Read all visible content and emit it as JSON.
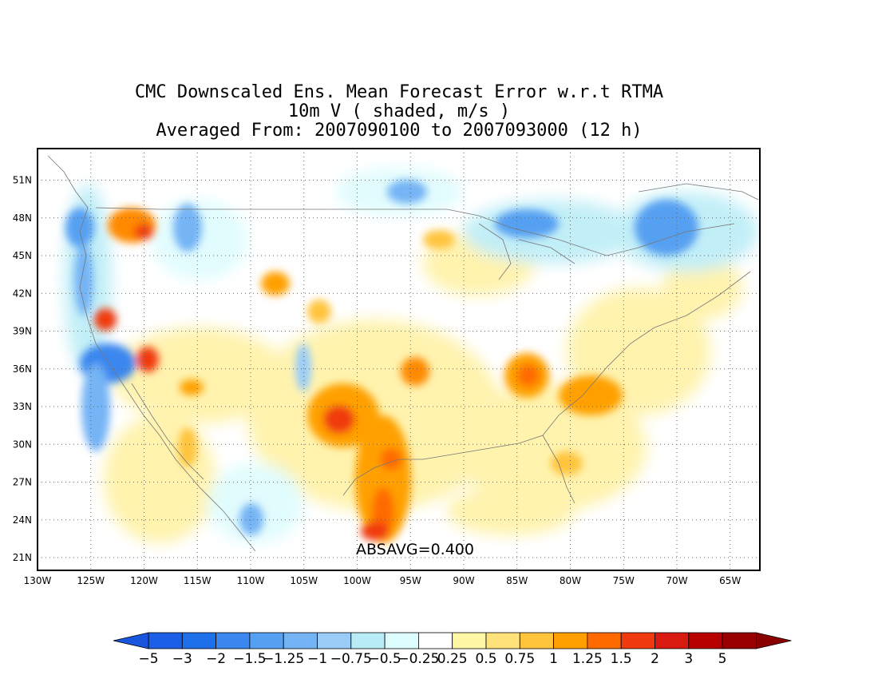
{
  "title": {
    "line1": "CMC Downscaled Ens. Mean Forecast Error w.r.t RTMA",
    "line2": "10m V ( shaded, m/s )",
    "line3": "Averaged From: 2007090100 to 2007093000 (12 h)"
  },
  "map": {
    "lat_labels": [
      "51N",
      "48N",
      "45N",
      "42N",
      "39N",
      "36N",
      "33N",
      "30N",
      "27N",
      "24N",
      "21N"
    ],
    "lon_labels": [
      "130W",
      "125W",
      "120W",
      "115W",
      "110W",
      "105W",
      "100W",
      "95W",
      "90W",
      "85W",
      "80W",
      "75W",
      "70W",
      "65W"
    ],
    "lat_values": [
      51,
      48,
      45,
      42,
      39,
      36,
      33,
      30,
      27,
      24,
      21
    ],
    "lon_values": [
      -130,
      -125,
      -120,
      -115,
      -110,
      -105,
      -100,
      -95,
      -90,
      -85,
      -80,
      -75,
      -70,
      -65
    ],
    "annotation": "ABSAVG=0.400",
    "grid": "dotted",
    "field": "10m V forecast error (m/s)"
  },
  "colorbar": {
    "labels": [
      "−5",
      "−3",
      "−2",
      "−1.5",
      "−1.25",
      "−1",
      "−0.75",
      "−0.5",
      "−0.25",
      "0.25",
      "0.5",
      "0.75",
      "1",
      "1.25",
      "1.5",
      "2",
      "3",
      "5"
    ],
    "colors": [
      "#1a5fe6",
      "#1e6fea",
      "#3a87ef",
      "#56a0f2",
      "#74b4f5",
      "#9accf8",
      "#b8ecf6",
      "#dcfcfd",
      "#ffffff",
      "#fff7a5",
      "#ffe27a",
      "#ffc43c",
      "#ffa000",
      "#ff6a00",
      "#f03a10",
      "#d81a10",
      "#b70000",
      "#980000"
    ],
    "low_extend_color": "#1a55dd",
    "high_extend_color": "#8a0000"
  }
}
